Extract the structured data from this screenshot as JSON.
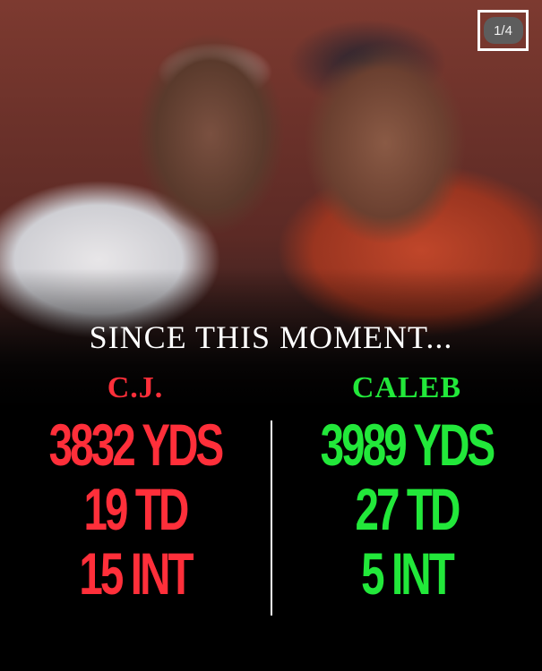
{
  "carousel": {
    "indicator": "1/4"
  },
  "headline": "SINCE THIS MOMENT...",
  "players": [
    {
      "name": "C.J.",
      "color": "#ff2f3a",
      "stats": [
        "3832 YDS",
        "19 TD",
        "15 INT"
      ]
    },
    {
      "name": "CALEB",
      "color": "#22e83a",
      "stats": [
        "3989 YDS",
        "27 TD",
        "5 INT"
      ]
    }
  ]
}
